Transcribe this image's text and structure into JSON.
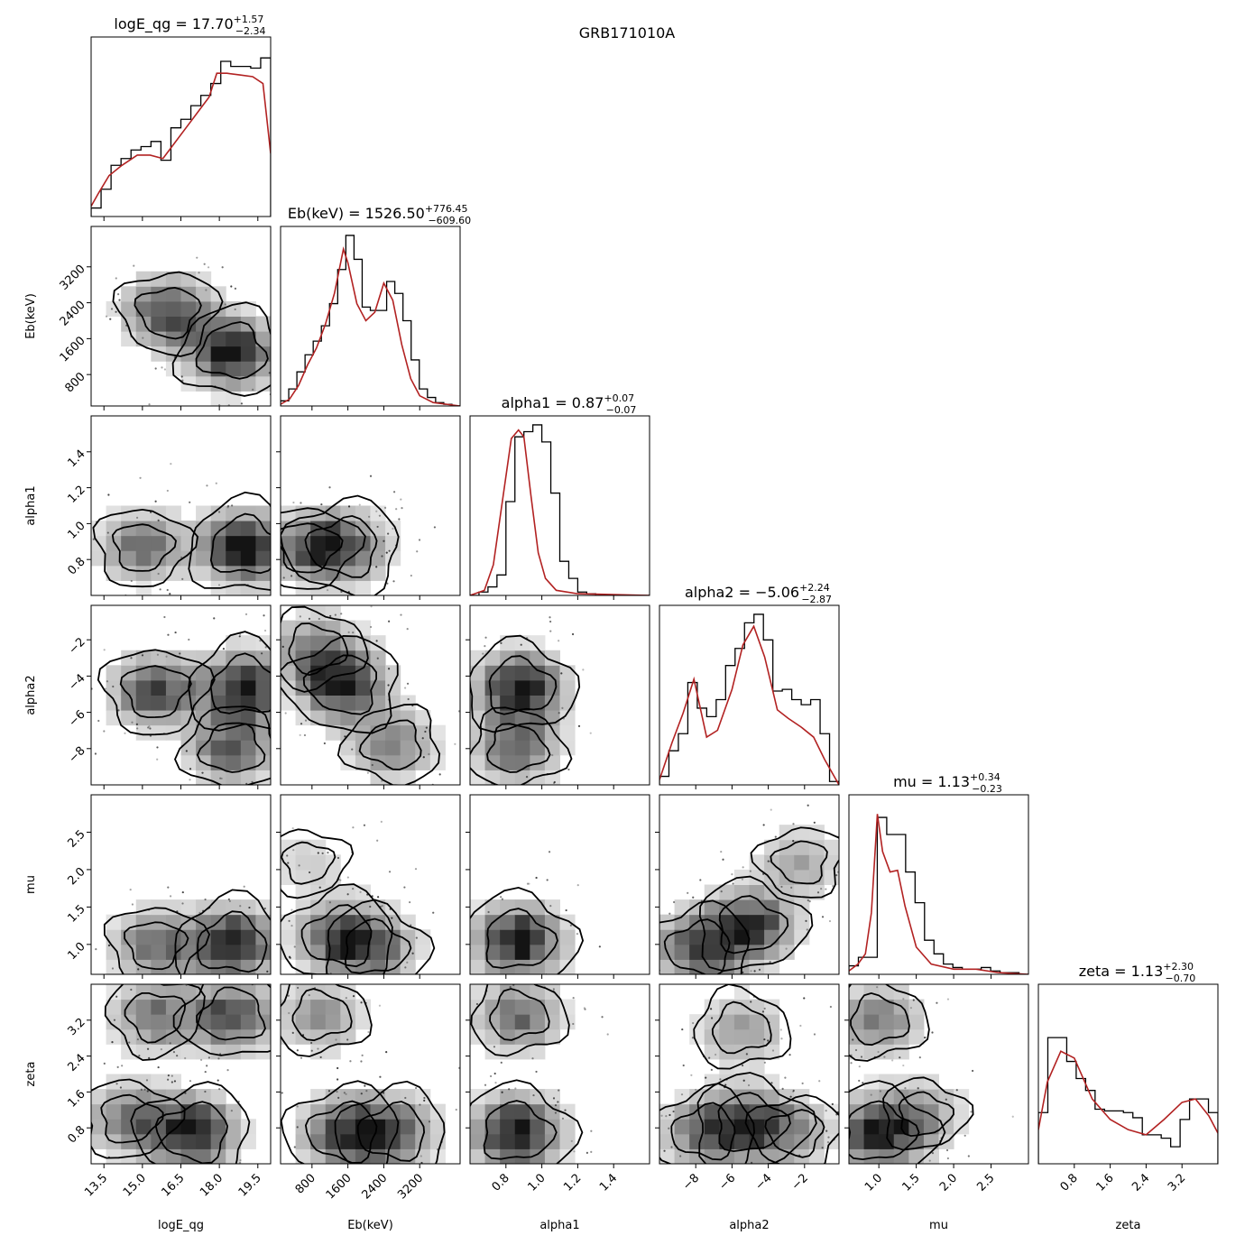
{
  "chart_data": {
    "type": "corner",
    "title": "GRB171010A",
    "params": [
      {
        "name": "logE_qg",
        "label": "logE_qg",
        "median": "17.70",
        "plus": "+1.57",
        "minus": "−2.34",
        "range": [
          13.0,
          20.0
        ],
        "ticks": [
          13.5,
          15.0,
          16.5,
          18.0,
          19.5
        ],
        "tick_labels": [
          "13.5",
          "15.0",
          "16.5",
          "18.0",
          "19.5"
        ]
      },
      {
        "name": "Eb",
        "label": "Eb(keV)",
        "median": "1526.50",
        "plus": "+776.45",
        "minus": "−609.60",
        "range": [
          100,
          4100
        ],
        "ticks": [
          800,
          1600,
          2400,
          3200
        ],
        "tick_labels": [
          "800",
          "1600",
          "2400",
          "3200"
        ]
      },
      {
        "name": "alpha1",
        "label": "alpha1",
        "median": "0.87",
        "plus": "+0.07",
        "minus": "−0.07",
        "range": [
          0.6,
          1.6
        ],
        "ticks": [
          0.8,
          1.0,
          1.2,
          1.4
        ],
        "tick_labels": [
          "0.8",
          "1.0",
          "1.2",
          "1.4"
        ]
      },
      {
        "name": "alpha2",
        "label": "alpha2",
        "median": "−5.06",
        "plus": "+2.24",
        "minus": "−2.87",
        "range": [
          -10.0,
          -0.1
        ],
        "ticks": [
          -8,
          -6,
          -4,
          -2
        ],
        "tick_labels": [
          "−8",
          "−6",
          "−4",
          "−2"
        ]
      },
      {
        "name": "mu",
        "label": "mu",
        "median": "1.13",
        "plus": "+0.34",
        "minus": "−0.23",
        "range": [
          0.6,
          3.0
        ],
        "ticks": [
          1.0,
          1.5,
          2.0,
          2.5
        ],
        "tick_labels": [
          "1.0",
          "1.5",
          "2.0",
          "2.5"
        ]
      },
      {
        "name": "zeta",
        "label": "zeta",
        "median": "1.13",
        "plus": "+2.30",
        "minus": "−0.70",
        "range": [
          0.0,
          4.0
        ],
        "ticks": [
          0.8,
          1.6,
          2.4,
          3.2
        ],
        "tick_labels": [
          "0.8",
          "1.6",
          "2.4",
          "3.2"
        ]
      }
    ],
    "hist": [
      [
        0.05,
        0.16,
        0.3,
        0.34,
        0.39,
        0.41,
        0.44,
        0.33,
        0.52,
        0.57,
        0.65,
        0.71,
        0.78,
        0.91,
        0.88,
        0.88,
        0.87,
        0.93
      ],
      [
        0.03,
        0.1,
        0.2,
        0.3,
        0.38,
        0.47,
        0.6,
        0.8,
        1.0,
        0.86,
        0.58,
        0.56,
        0.56,
        0.73,
        0.66,
        0.5,
        0.27,
        0.1,
        0.05,
        0.02,
        0.01,
        0.0
      ],
      [
        0.0,
        0.02,
        0.05,
        0.12,
        0.55,
        0.93,
        0.96,
        1.0,
        0.9,
        0.6,
        0.2,
        0.1,
        0.02,
        0.01,
        0.0,
        0.0,
        0.0,
        0.0,
        0.0,
        0.0
      ],
      [
        0.05,
        0.2,
        0.3,
        0.6,
        0.45,
        0.4,
        0.5,
        0.7,
        0.8,
        0.95,
        1.0,
        0.85,
        0.55,
        0.56,
        0.5,
        0.47,
        0.5,
        0.3,
        0.02
      ],
      [
        0.05,
        0.1,
        0.1,
        0.92,
        0.82,
        0.82,
        0.6,
        0.42,
        0.2,
        0.12,
        0.06,
        0.04,
        0.03,
        0.03,
        0.04,
        0.02,
        0.01,
        0.01,
        0.0
      ],
      [
        0.3,
        0.74,
        0.74,
        0.6,
        0.5,
        0.43,
        0.32,
        0.31,
        0.31,
        0.3,
        0.27,
        0.17,
        0.17,
        0.15,
        0.1,
        0.26,
        0.38,
        0.38,
        0.3
      ]
    ],
    "kde": [
      [
        [
          13.0,
          0.06
        ],
        [
          13.3,
          0.14
        ],
        [
          13.7,
          0.24
        ],
        [
          14.2,
          0.3
        ],
        [
          14.8,
          0.36
        ],
        [
          15.3,
          0.36
        ],
        [
          15.8,
          0.34
        ],
        [
          16.2,
          0.42
        ],
        [
          16.7,
          0.52
        ],
        [
          17.2,
          0.62
        ],
        [
          17.6,
          0.7
        ],
        [
          17.9,
          0.84
        ],
        [
          18.3,
          0.84
        ],
        [
          18.8,
          0.83
        ],
        [
          19.3,
          0.82
        ],
        [
          19.7,
          0.78
        ],
        [
          20.0,
          0.37
        ]
      ],
      [
        [
          100,
          0.01
        ],
        [
          300,
          0.04
        ],
        [
          500,
          0.12
        ],
        [
          700,
          0.24
        ],
        [
          900,
          0.34
        ],
        [
          1100,
          0.48
        ],
        [
          1300,
          0.66
        ],
        [
          1500,
          0.92
        ],
        [
          1600,
          0.84
        ],
        [
          1800,
          0.6
        ],
        [
          2000,
          0.5
        ],
        [
          2200,
          0.55
        ],
        [
          2400,
          0.72
        ],
        [
          2600,
          0.62
        ],
        [
          2800,
          0.36
        ],
        [
          3000,
          0.16
        ],
        [
          3200,
          0.06
        ],
        [
          3500,
          0.02
        ],
        [
          3800,
          0.01
        ],
        [
          4100,
          0.0
        ]
      ],
      [
        [
          0.6,
          0.0
        ],
        [
          0.68,
          0.03
        ],
        [
          0.73,
          0.18
        ],
        [
          0.78,
          0.55
        ],
        [
          0.83,
          0.92
        ],
        [
          0.87,
          0.97
        ],
        [
          0.9,
          0.93
        ],
        [
          0.94,
          0.58
        ],
        [
          0.98,
          0.25
        ],
        [
          1.02,
          0.1
        ],
        [
          1.08,
          0.03
        ],
        [
          1.2,
          0.01
        ],
        [
          1.6,
          0.0
        ]
      ],
      [
        [
          -10,
          0.03
        ],
        [
          -9.3,
          0.25
        ],
        [
          -8.7,
          0.42
        ],
        [
          -8.1,
          0.62
        ],
        [
          -7.4,
          0.28
        ],
        [
          -6.8,
          0.32
        ],
        [
          -6.0,
          0.56
        ],
        [
          -5.4,
          0.82
        ],
        [
          -4.8,
          0.93
        ],
        [
          -4.2,
          0.75
        ],
        [
          -3.5,
          0.44
        ],
        [
          -2.9,
          0.39
        ],
        [
          -2.2,
          0.34
        ],
        [
          -1.5,
          0.28
        ],
        [
          -0.9,
          0.15
        ],
        [
          -0.1,
          0.0
        ]
      ],
      [
        [
          0.6,
          0.02
        ],
        [
          0.72,
          0.06
        ],
        [
          0.82,
          0.12
        ],
        [
          0.9,
          0.36
        ],
        [
          0.98,
          0.94
        ],
        [
          1.05,
          0.72
        ],
        [
          1.15,
          0.6
        ],
        [
          1.25,
          0.61
        ],
        [
          1.35,
          0.4
        ],
        [
          1.5,
          0.16
        ],
        [
          1.7,
          0.06
        ],
        [
          2.0,
          0.03
        ],
        [
          2.3,
          0.03
        ],
        [
          2.6,
          0.01
        ],
        [
          3.0,
          0.0
        ]
      ],
      [
        [
          0.0,
          0.2
        ],
        [
          0.2,
          0.48
        ],
        [
          0.5,
          0.66
        ],
        [
          0.8,
          0.62
        ],
        [
          1.2,
          0.38
        ],
        [
          1.6,
          0.26
        ],
        [
          2.0,
          0.2
        ],
        [
          2.4,
          0.17
        ],
        [
          2.8,
          0.26
        ],
        [
          3.2,
          0.36
        ],
        [
          3.5,
          0.38
        ],
        [
          3.8,
          0.28
        ],
        [
          4.0,
          0.18
        ]
      ]
    ],
    "mode_grid": {
      "cells": 12,
      "peaks": [
        [
          [
            16.0,
            2200,
            0.7
          ],
          [
            18.5,
            1300,
            0.9
          ]
        ],
        [
          [
            15.0,
            0.87,
            0.6
          ],
          [
            19.0,
            0.87,
            1.0
          ]
        ],
        [
          [
            700,
            0.87,
            0.7
          ],
          [
            1500,
            0.87,
            1.0
          ]
        ],
        [
          [
            15.5,
            -4.8,
            0.8
          ],
          [
            19.0,
            -4.6,
            1.0
          ],
          [
            18.5,
            -8.0,
            0.7
          ]
        ],
        [
          [
            1500,
            -4.5,
            1.0
          ],
          [
            900,
            -2.5,
            0.6
          ],
          [
            2600,
            -7.8,
            0.6
          ]
        ],
        [
          [
            0.88,
            -4.6,
            0.9
          ],
          [
            0.86,
            -8.0,
            0.6
          ]
        ],
        [
          [
            15.5,
            1.0,
            0.6
          ],
          [
            18.5,
            1.0,
            1.0
          ]
        ],
        [
          [
            1400,
            1.1,
            1.0
          ],
          [
            2200,
            0.95,
            0.8
          ],
          [
            700,
            2.1,
            0.3
          ]
        ],
        [
          [
            0.87,
            1.05,
            1.0
          ]
        ],
        [
          [
            -7.8,
            0.95,
            0.8
          ],
          [
            -5.0,
            1.25,
            0.9
          ],
          [
            -2.2,
            2.1,
            0.4
          ]
        ],
        [
          [
            15.5,
            3.3,
            0.6
          ],
          [
            18.5,
            3.3,
            0.8
          ],
          [
            17.0,
            0.7,
            1.0
          ],
          [
            14.5,
            1.0,
            0.6
          ]
        ],
        [
          [
            1000,
            3.3,
            0.6
          ],
          [
            1500,
            0.7,
            1.0
          ],
          [
            2600,
            0.7,
            0.9
          ]
        ],
        [
          [
            0.87,
            3.3,
            0.6
          ],
          [
            0.86,
            0.7,
            1.0
          ]
        ],
        [
          [
            -5.5,
            3.0,
            0.6
          ],
          [
            -7.5,
            0.7,
            0.8
          ],
          [
            -5.0,
            0.9,
            1.0
          ],
          [
            -2.5,
            0.7,
            0.5
          ]
        ],
        [
          [
            1.0,
            3.2,
            0.6
          ],
          [
            1.0,
            0.7,
            1.0
          ],
          [
            1.6,
            1.1,
            0.4
          ]
        ]
      ]
    }
  }
}
